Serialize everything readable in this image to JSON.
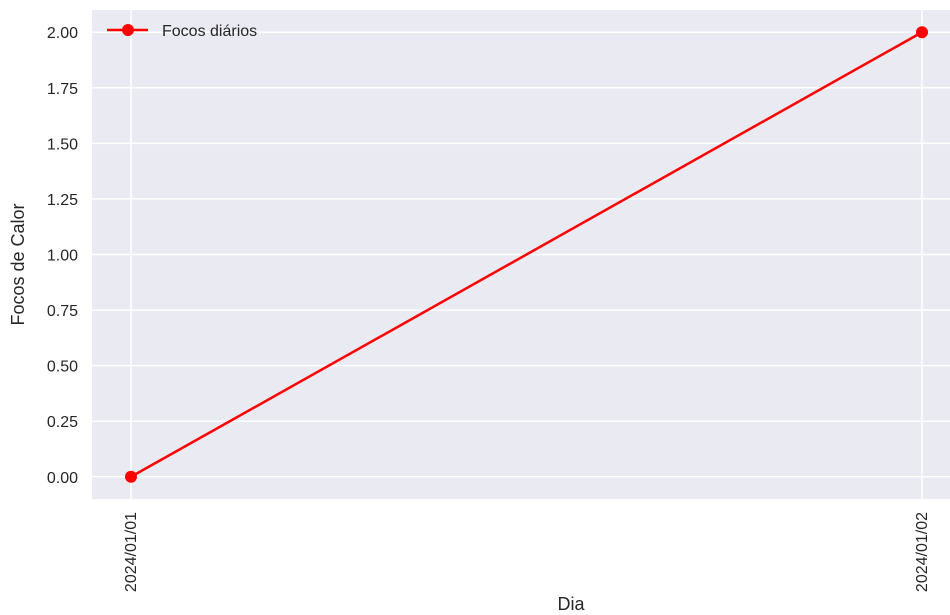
{
  "chart_data": {
    "type": "line",
    "title": "",
    "xlabel": "Dia",
    "ylabel": "Focos de Calor",
    "categories": [
      "2024/01/01",
      "2024/01/02"
    ],
    "series": [
      {
        "name": "Focos diários",
        "values": [
          0,
          2
        ],
        "color": "#ff0000",
        "marker": "circle"
      }
    ],
    "y_ticks": [
      "0.00",
      "0.25",
      "0.50",
      "0.75",
      "1.00",
      "1.25",
      "1.50",
      "1.75",
      "2.00"
    ],
    "ylim": [
      -0.1,
      2.1
    ],
    "grid": true,
    "legend_position": "top-left",
    "background_color": "#eaeaf2",
    "grid_color": "#ffffff"
  }
}
